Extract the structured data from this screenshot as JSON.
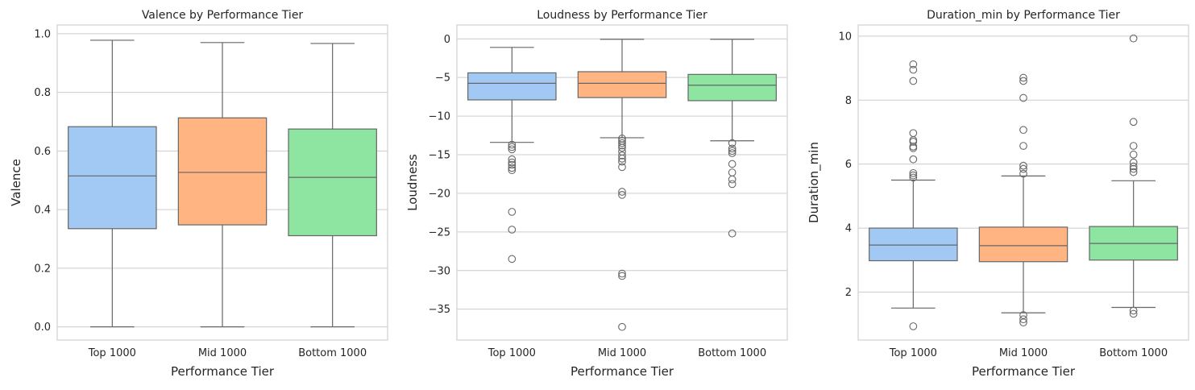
{
  "colors": {
    "series": [
      "#a1c9f4",
      "#ffb482",
      "#8de5a1"
    ],
    "line": "#666666",
    "grid": "#cccccc",
    "spine": "#d0d0d0"
  },
  "chart_data": [
    {
      "type": "box",
      "title": "Valence by Performance Tier",
      "xlabel": "Performance Tier",
      "ylabel": "Valence",
      "categories": [
        "Top 1000",
        "Mid 1000",
        "Bottom 1000"
      ],
      "ylim": [
        -0.045,
        1.03
      ],
      "yticks": [
        0.0,
        0.2,
        0.4,
        0.6,
        0.8,
        1.0
      ],
      "ytick_labels": [
        "0.0",
        "0.2",
        "0.4",
        "0.6",
        "0.8",
        "1.0"
      ],
      "grid": "horizontal",
      "boxes": [
        {
          "q1": 0.335,
          "median": 0.515,
          "q3": 0.683,
          "whisker_low": 0.0,
          "whisker_high": 0.978,
          "outliers": []
        },
        {
          "q1": 0.348,
          "median": 0.527,
          "q3": 0.713,
          "whisker_low": 0.0,
          "whisker_high": 0.97,
          "outliers": []
        },
        {
          "q1": 0.311,
          "median": 0.51,
          "q3": 0.675,
          "whisker_low": 0.0,
          "whisker_high": 0.967,
          "outliers": []
        }
      ]
    },
    {
      "type": "box",
      "title": "Loudness by Performance Tier",
      "xlabel": "Performance Tier",
      "ylabel": "Loudness",
      "categories": [
        "Top 1000",
        "Mid 1000",
        "Bottom 1000"
      ],
      "ylim": [
        -39.0,
        1.8
      ],
      "yticks": [
        0,
        -5,
        -10,
        -15,
        -20,
        -25,
        -30,
        -35
      ],
      "ytick_labels": [
        "0",
        "−5",
        "−10",
        "−15",
        "−20",
        "−25",
        "−30",
        "−35"
      ],
      "grid": "horizontal",
      "boxes": [
        {
          "q1": -7.9,
          "median": -5.75,
          "q3": -4.4,
          "whisker_low": -13.4,
          "whisker_high": -1.1,
          "outliers": [
            -13.7,
            -14.0,
            -14.3,
            -15.6,
            -16.0,
            -16.3,
            -16.7,
            -17.0,
            -22.4,
            -24.7,
            -28.5
          ]
        },
        {
          "q1": -7.6,
          "median": -5.75,
          "q3": -4.25,
          "whisker_low": -12.8,
          "whisker_high": -0.05,
          "outliers": [
            -12.9,
            -13.2,
            -13.5,
            -13.8,
            -14.1,
            -14.6,
            -15.1,
            -15.5,
            -15.9,
            -16.6,
            -19.8,
            -20.2,
            -30.4,
            -30.7,
            -37.3
          ]
        },
        {
          "q1": -8.0,
          "median": -6.0,
          "q3": -4.6,
          "whisker_low": -13.2,
          "whisker_high": -0.05,
          "outliers": [
            -13.5,
            -14.2,
            -14.5,
            -14.8,
            -16.2,
            -17.3,
            -18.2,
            -18.8,
            -25.2
          ]
        }
      ]
    },
    {
      "type": "box",
      "title": "Duration_min by Performance Tier",
      "xlabel": "Performance Tier",
      "ylabel": "Duration_min",
      "categories": [
        "Top 1000",
        "Mid 1000",
        "Bottom 1000"
      ],
      "ylim": [
        0.5,
        10.35
      ],
      "yticks": [
        2,
        4,
        6,
        8,
        10
      ],
      "ytick_labels": [
        "2",
        "4",
        "6",
        "8",
        "10"
      ],
      "grid": "horizontal",
      "boxes": [
        {
          "q1": 2.98,
          "median": 3.47,
          "q3": 4.0,
          "whisker_low": 1.5,
          "whisker_high": 5.5,
          "outliers": [
            0.93,
            5.58,
            5.65,
            5.72,
            6.15,
            6.5,
            6.55,
            6.7,
            6.75,
            6.97,
            8.6,
            8.95,
            9.12
          ]
        },
        {
          "q1": 2.95,
          "median": 3.45,
          "q3": 4.03,
          "whisker_low": 1.35,
          "whisker_high": 5.63,
          "outliers": [
            1.05,
            1.15,
            1.28,
            5.7,
            5.85,
            5.95,
            6.57,
            7.07,
            8.07,
            8.6,
            8.7
          ]
        },
        {
          "q1": 3.0,
          "median": 3.52,
          "q3": 4.05,
          "whisker_low": 1.52,
          "whisker_high": 5.48,
          "outliers": [
            1.32,
            1.42,
            5.75,
            5.85,
            5.93,
            6.05,
            6.3,
            6.57,
            7.32,
            9.93
          ]
        }
      ]
    }
  ]
}
